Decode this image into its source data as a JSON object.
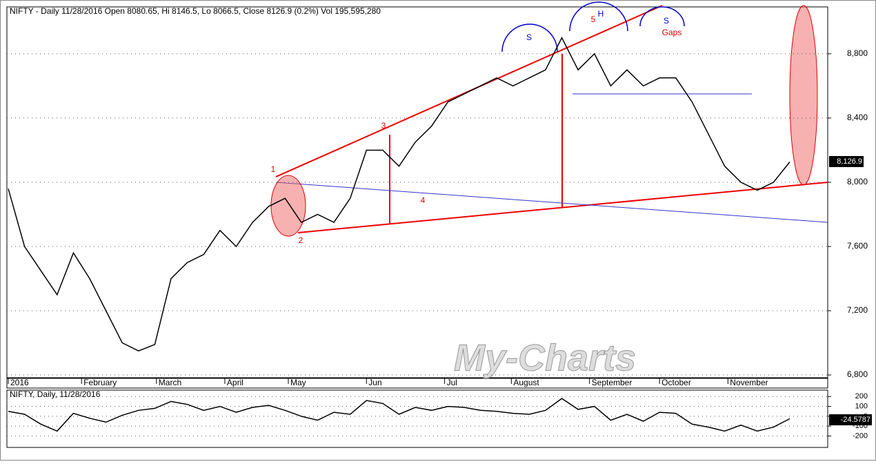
{
  "chart_data": [
    {
      "type": "line",
      "title": "NIFTY - Daily 11/28/2016 Open 8080.65, Hi 8146.5, Lo 8066.5, Close 8126.9 (0.2%) Vol 195,595,280",
      "series": [
        {
          "name": "NIFTY",
          "color": "#000000",
          "values": [
            7960,
            7600,
            7450,
            7300,
            7560,
            7400,
            7200,
            7000,
            6950,
            6990,
            7400,
            7500,
            7550,
            7700,
            7600,
            7750,
            7850,
            7900,
            7750,
            7800,
            7750,
            7900,
            8200,
            8200,
            8100,
            8250,
            8350,
            8500,
            8550,
            8600,
            8650,
            8600,
            8650,
            8700,
            8900,
            8700,
            8800,
            8600,
            8700,
            8600,
            8650,
            8650,
            8500,
            8300,
            8100,
            8000,
            7950,
            8000,
            8126.9
          ]
        }
      ],
      "last_value_label": "8,126.9",
      "xticks": [
        {
          "value": 0,
          "label": "2016"
        },
        {
          "value": 4.5,
          "label": "February"
        },
        {
          "value": 9.1,
          "label": "March"
        },
        {
          "value": 13.3,
          "label": "April"
        },
        {
          "value": 17.2,
          "label": "May"
        },
        {
          "value": 22,
          "label": "Jun"
        },
        {
          "value": 26.8,
          "label": "Jul"
        },
        {
          "value": 30.9,
          "label": "August"
        },
        {
          "value": 35.7,
          "label": "September"
        },
        {
          "value": 40,
          "label": "October"
        },
        {
          "value": 44.2,
          "label": "November"
        }
      ],
      "xlim": [
        0,
        48
      ],
      "ylim": [
        6783,
        9092
      ],
      "yticks": [
        {
          "value": 6800,
          "label": "6,800"
        },
        {
          "value": 7200,
          "label": "7,200"
        },
        {
          "value": 7600,
          "label": "7,600"
        },
        {
          "value": 8000,
          "label": "8,000"
        },
        {
          "value": 8400,
          "label": "8,400"
        },
        {
          "value": 8800,
          "label": "8,800"
        }
      ],
      "grid": true,
      "annotations": [
        "1",
        "2",
        "3",
        "4",
        "5",
        "H",
        "S",
        "S",
        "Gaps"
      ],
      "watermark": "My-Charts"
    },
    {
      "type": "line",
      "title": "NIFTY, Daily, 11/28/2016",
      "series": [
        {
          "name": "NIFTY",
          "color": "#000000",
          "values": [
            50,
            20,
            -80,
            -150,
            30,
            -20,
            -60,
            10,
            60,
            80,
            150,
            120,
            60,
            100,
            40,
            90,
            110,
            60,
            0,
            -40,
            40,
            20,
            160,
            130,
            20,
            90,
            60,
            100,
            90,
            60,
            50,
            30,
            20,
            60,
            180,
            70,
            100,
            -40,
            20,
            -50,
            40,
            30,
            -80,
            -110,
            -150,
            -90,
            -150,
            -110,
            -24.5787
          ]
        }
      ],
      "last_value_label": "-24.5787",
      "xlim": [
        0,
        48
      ],
      "ylim": [
        -316,
        265
      ],
      "yticks": [
        -200,
        -100,
        0,
        100,
        200
      ],
      "grid": true
    }
  ]
}
